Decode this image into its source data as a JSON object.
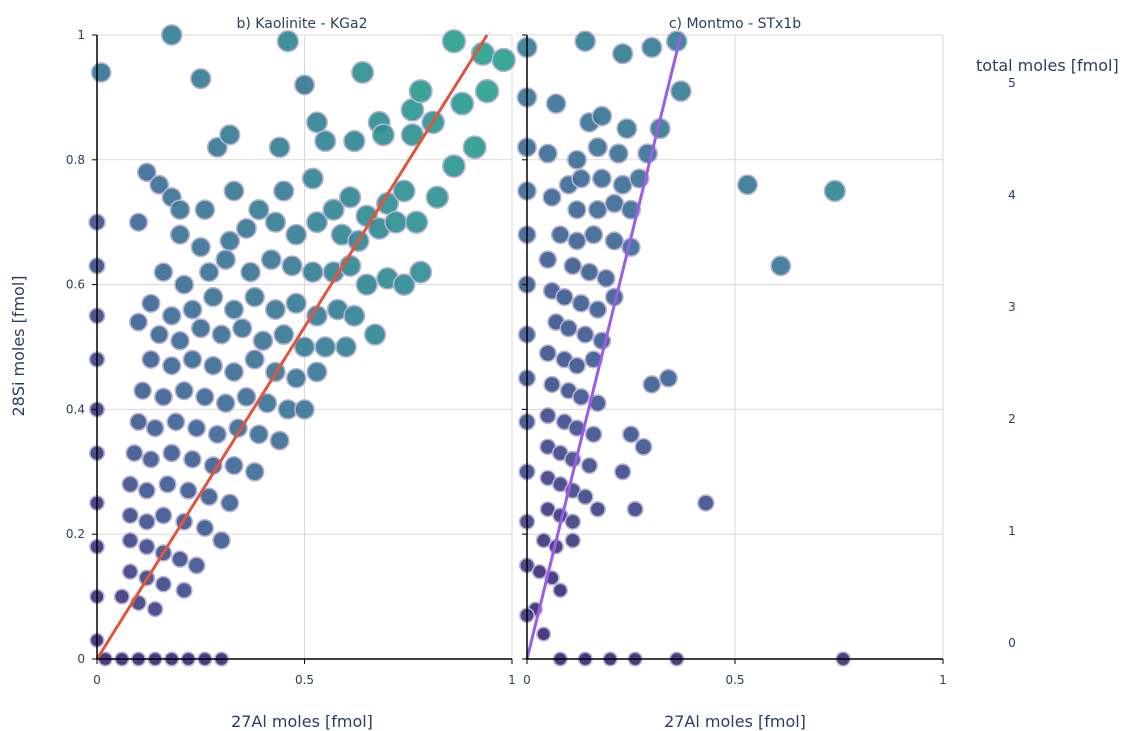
{
  "colors": {
    "grid": "#d9d9d9",
    "axis": "#000000",
    "marker_outline": "#b8b2d6",
    "kaolinite_fit": "#e1553f",
    "montmo_fit": "#9b5ce8",
    "colorscale": [
      "#3b1f6b",
      "#404a8a",
      "#3e6a95",
      "#338394",
      "#2a9f8e"
    ]
  },
  "chart_data": [
    {
      "type": "scatter",
      "title": "b) Kaolinite - KGa2",
      "xlabel": "27Al moles [fmol]",
      "ylabel": "28Si moles [fmol]",
      "xlim": [
        0,
        1
      ],
      "ylim": [
        0,
        1
      ],
      "xticks": [
        "0",
        "0.5",
        "1"
      ],
      "yticks": [
        "0",
        "0.2",
        "0.4",
        "0.6",
        "0.8",
        "1"
      ],
      "grid": true,
      "fit_line": {
        "x": [
          0,
          0.94
        ],
        "y": [
          0,
          1
        ]
      },
      "points": [
        [
          0.01,
          0.94,
          4.3
        ],
        [
          0.18,
          1.0,
          4.6
        ],
        [
          0.25,
          0.93,
          4.5
        ],
        [
          0.46,
          0.99,
          4.8
        ],
        [
          0.5,
          0.92,
          4.4
        ],
        [
          0.64,
          0.94,
          5
        ],
        [
          0.86,
          0.99,
          5.4
        ],
        [
          0.93,
          0.97,
          5.4
        ],
        [
          0.98,
          0.96,
          5.4
        ],
        [
          0.94,
          0.91,
          5.4
        ],
        [
          0.78,
          0.91,
          5.3
        ],
        [
          0.88,
          0.89,
          5.3
        ],
        [
          0.76,
          0.88,
          5.2
        ],
        [
          0.68,
          0.86,
          5
        ],
        [
          0.53,
          0.86,
          4.7
        ],
        [
          0.32,
          0.84,
          4.5
        ],
        [
          0.29,
          0.82,
          4.4
        ],
        [
          0.44,
          0.82,
          4.6
        ],
        [
          0.55,
          0.83,
          4.7
        ],
        [
          0.62,
          0.83,
          4.8
        ],
        [
          0.69,
          0.84,
          5
        ],
        [
          0.76,
          0.84,
          5.1
        ],
        [
          0.81,
          0.86,
          5.2
        ],
        [
          0.91,
          0.82,
          5.3
        ],
        [
          0.12,
          0.78,
          4
        ],
        [
          0.15,
          0.76,
          4.1
        ],
        [
          0.18,
          0.74,
          4.2
        ],
        [
          0.2,
          0.72,
          4.3
        ],
        [
          0.26,
          0.72,
          4.3
        ],
        [
          0.33,
          0.75,
          4.4
        ],
        [
          0.39,
          0.72,
          4.5
        ],
        [
          0.45,
          0.75,
          4.5
        ],
        [
          0.52,
          0.77,
          4.7
        ],
        [
          0.57,
          0.72,
          4.8
        ],
        [
          0.61,
          0.74,
          4.8
        ],
        [
          0.65,
          0.71,
          4.9
        ],
        [
          0.7,
          0.73,
          5
        ],
        [
          0.74,
          0.75,
          5
        ],
        [
          0.77,
          0.7,
          5.1
        ],
        [
          0.82,
          0.74,
          5.1
        ],
        [
          0.86,
          0.79,
          5.2
        ],
        [
          0.1,
          0.7,
          3.9
        ],
        [
          0.2,
          0.68,
          4.2
        ],
        [
          0.25,
          0.66,
          4.2
        ],
        [
          0.32,
          0.67,
          4.3
        ],
        [
          0.36,
          0.69,
          4.4
        ],
        [
          0.43,
          0.7,
          4.5
        ],
        [
          0.48,
          0.68,
          4.6
        ],
        [
          0.53,
          0.7,
          4.7
        ],
        [
          0.59,
          0.68,
          4.8
        ],
        [
          0.63,
          0.67,
          4.8
        ],
        [
          0.68,
          0.69,
          4.9
        ],
        [
          0.72,
          0.7,
          5
        ],
        [
          0.78,
          0.62,
          5
        ],
        [
          0.16,
          0.62,
          4
        ],
        [
          0.21,
          0.6,
          4.1
        ],
        [
          0.27,
          0.62,
          4.2
        ],
        [
          0.31,
          0.64,
          4.3
        ],
        [
          0.37,
          0.62,
          4.3
        ],
        [
          0.42,
          0.64,
          4.4
        ],
        [
          0.47,
          0.63,
          4.5
        ],
        [
          0.52,
          0.62,
          4.6
        ],
        [
          0.57,
          0.62,
          4.7
        ],
        [
          0.61,
          0.63,
          4.8
        ],
        [
          0.65,
          0.6,
          4.8
        ],
        [
          0.7,
          0.61,
          4.9
        ],
        [
          0.74,
          0.6,
          4.9
        ],
        [
          0.13,
          0.57,
          3.9
        ],
        [
          0.18,
          0.55,
          4
        ],
        [
          0.23,
          0.56,
          4.1
        ],
        [
          0.28,
          0.58,
          4.2
        ],
        [
          0.33,
          0.56,
          4.2
        ],
        [
          0.38,
          0.58,
          4.3
        ],
        [
          0.43,
          0.56,
          4.4
        ],
        [
          0.48,
          0.57,
          4.5
        ],
        [
          0.53,
          0.55,
          4.6
        ],
        [
          0.58,
          0.56,
          4.6
        ],
        [
          0.62,
          0.55,
          4.7
        ],
        [
          0.67,
          0.52,
          4.8
        ],
        [
          0.1,
          0.54,
          3.8
        ],
        [
          0.15,
          0.52,
          3.9
        ],
        [
          0.2,
          0.51,
          4
        ],
        [
          0.25,
          0.53,
          4.1
        ],
        [
          0.3,
          0.52,
          4.1
        ],
        [
          0.35,
          0.53,
          4.2
        ],
        [
          0.4,
          0.51,
          4.3
        ],
        [
          0.45,
          0.52,
          4.4
        ],
        [
          0.5,
          0.5,
          4.5
        ],
        [
          0.55,
          0.5,
          4.6
        ],
        [
          0.6,
          0.5,
          4.6
        ],
        [
          0.13,
          0.48,
          3.8
        ],
        [
          0.18,
          0.47,
          3.9
        ],
        [
          0.23,
          0.48,
          4
        ],
        [
          0.28,
          0.47,
          4
        ],
        [
          0.33,
          0.46,
          4.1
        ],
        [
          0.38,
          0.48,
          4.2
        ],
        [
          0.43,
          0.46,
          4.3
        ],
        [
          0.48,
          0.45,
          4.3
        ],
        [
          0.53,
          0.46,
          4.4
        ],
        [
          0.11,
          0.43,
          3.7
        ],
        [
          0.16,
          0.42,
          3.8
        ],
        [
          0.21,
          0.43,
          3.9
        ],
        [
          0.26,
          0.42,
          3.9
        ],
        [
          0.31,
          0.41,
          4
        ],
        [
          0.36,
          0.42,
          4.1
        ],
        [
          0.41,
          0.41,
          4.2
        ],
        [
          0.46,
          0.4,
          4.3
        ],
        [
          0.5,
          0.4,
          4.3
        ],
        [
          0.1,
          0.38,
          3.6
        ],
        [
          0.14,
          0.37,
          3.7
        ],
        [
          0.19,
          0.38,
          3.8
        ],
        [
          0.24,
          0.37,
          3.8
        ],
        [
          0.29,
          0.36,
          3.9
        ],
        [
          0.34,
          0.37,
          4
        ],
        [
          0.39,
          0.36,
          4.1
        ],
        [
          0.44,
          0.35,
          4.1
        ],
        [
          0.09,
          0.33,
          3.5
        ],
        [
          0.13,
          0.32,
          3.6
        ],
        [
          0.18,
          0.33,
          3.7
        ],
        [
          0.23,
          0.32,
          3.7
        ],
        [
          0.28,
          0.31,
          3.8
        ],
        [
          0.33,
          0.31,
          3.9
        ],
        [
          0.38,
          0.3,
          4
        ],
        [
          0.08,
          0.28,
          3.4
        ],
        [
          0.12,
          0.27,
          3.5
        ],
        [
          0.17,
          0.28,
          3.6
        ],
        [
          0.22,
          0.27,
          3.6
        ],
        [
          0.27,
          0.26,
          3.7
        ],
        [
          0.32,
          0.25,
          3.8
        ],
        [
          0.08,
          0.23,
          3.3
        ],
        [
          0.12,
          0.22,
          3.4
        ],
        [
          0.16,
          0.23,
          3.5
        ],
        [
          0.21,
          0.22,
          3.5
        ],
        [
          0.26,
          0.21,
          3.6
        ],
        [
          0.3,
          0.19,
          3.7
        ],
        [
          0.08,
          0.19,
          3.2
        ],
        [
          0.12,
          0.18,
          3.3
        ],
        [
          0.16,
          0.17,
          3.4
        ],
        [
          0.2,
          0.16,
          3.4
        ],
        [
          0.24,
          0.15,
          3.5
        ],
        [
          0.08,
          0.14,
          3.1
        ],
        [
          0.12,
          0.13,
          3.2
        ],
        [
          0.16,
          0.12,
          3.2
        ],
        [
          0.21,
          0.11,
          3.3
        ],
        [
          0.06,
          0.1,
          3
        ],
        [
          0.1,
          0.09,
          3.1
        ],
        [
          0.14,
          0.08,
          3.1
        ],
        [
          0.0,
          0.7,
          3.4
        ],
        [
          0.0,
          0.63,
          3.3
        ],
        [
          0.0,
          0.55,
          3.2
        ],
        [
          0.0,
          0.48,
          3.1
        ],
        [
          0.0,
          0.4,
          3
        ],
        [
          0.0,
          0.33,
          3
        ],
        [
          0.0,
          0.25,
          2.9
        ],
        [
          0.0,
          0.18,
          2.9
        ],
        [
          0.0,
          0.1,
          2.8
        ],
        [
          0.0,
          0.03,
          2.7
        ],
        [
          0.02,
          0.0,
          2.7
        ],
        [
          0.06,
          0.0,
          2.7
        ],
        [
          0.1,
          0.0,
          2.7
        ],
        [
          0.14,
          0.0,
          2.7
        ],
        [
          0.18,
          0.0,
          2.7
        ],
        [
          0.22,
          0.0,
          2.7
        ],
        [
          0.26,
          0.0,
          2.7
        ],
        [
          0.3,
          0.0,
          2.7
        ]
      ]
    },
    {
      "type": "scatter",
      "title": "c) Montmo - STx1b",
      "xlabel": "27Al moles [fmol]",
      "xlim": [
        0,
        1
      ],
      "ylim": [
        0,
        1
      ],
      "xticks": [
        "0",
        "0.5",
        "1"
      ],
      "grid": true,
      "fit_line": {
        "x": [
          0,
          0.37
        ],
        "y": [
          0,
          1
        ]
      },
      "points": [
        [
          0.0,
          0.98,
          4.5
        ],
        [
          0.0,
          0.9,
          4.3
        ],
        [
          0.0,
          0.82,
          4.1
        ],
        [
          0.0,
          0.75,
          4
        ],
        [
          0.0,
          0.68,
          3.8
        ],
        [
          0.0,
          0.6,
          3.7
        ],
        [
          0.0,
          0.52,
          3.6
        ],
        [
          0.0,
          0.45,
          3.5
        ],
        [
          0.0,
          0.38,
          3.4
        ],
        [
          0.0,
          0.3,
          3.3
        ],
        [
          0.0,
          0.22,
          3.1
        ],
        [
          0.0,
          0.15,
          3
        ],
        [
          0.0,
          0.07,
          2.9
        ],
        [
          0.14,
          0.99,
          4.6
        ],
        [
          0.23,
          0.97,
          4.5
        ],
        [
          0.3,
          0.98,
          4.5
        ],
        [
          0.36,
          0.99,
          4.6
        ],
        [
          0.07,
          0.89,
          4.3
        ],
        [
          0.15,
          0.86,
          4.3
        ],
        [
          0.18,
          0.87,
          4.3
        ],
        [
          0.24,
          0.85,
          4.4
        ],
        [
          0.32,
          0.85,
          4.5
        ],
        [
          0.37,
          0.91,
          4.6
        ],
        [
          0.05,
          0.81,
          4.1
        ],
        [
          0.12,
          0.8,
          4.1
        ],
        [
          0.17,
          0.82,
          4.2
        ],
        [
          0.22,
          0.81,
          4.2
        ],
        [
          0.29,
          0.81,
          4.3
        ],
        [
          0.1,
          0.76,
          4
        ],
        [
          0.13,
          0.77,
          4
        ],
        [
          0.18,
          0.77,
          4.1
        ],
        [
          0.23,
          0.76,
          4.1
        ],
        [
          0.27,
          0.77,
          4.2
        ],
        [
          0.53,
          0.76,
          4.4
        ],
        [
          0.74,
          0.75,
          4.8
        ],
        [
          0.06,
          0.74,
          3.9
        ],
        [
          0.12,
          0.72,
          3.9
        ],
        [
          0.17,
          0.72,
          4
        ],
        [
          0.21,
          0.73,
          4
        ],
        [
          0.25,
          0.72,
          4.1
        ],
        [
          0.08,
          0.68,
          3.8
        ],
        [
          0.12,
          0.67,
          3.8
        ],
        [
          0.16,
          0.68,
          3.9
        ],
        [
          0.21,
          0.67,
          3.9
        ],
        [
          0.25,
          0.66,
          4
        ],
        [
          0.05,
          0.64,
          3.7
        ],
        [
          0.11,
          0.63,
          3.7
        ],
        [
          0.15,
          0.62,
          3.8
        ],
        [
          0.19,
          0.61,
          3.8
        ],
        [
          0.61,
          0.63,
          4.4
        ],
        [
          0.06,
          0.59,
          3.6
        ],
        [
          0.09,
          0.58,
          3.6
        ],
        [
          0.13,
          0.57,
          3.7
        ],
        [
          0.17,
          0.56,
          3.7
        ],
        [
          0.21,
          0.58,
          3.8
        ],
        [
          0.07,
          0.54,
          3.5
        ],
        [
          0.1,
          0.53,
          3.6
        ],
        [
          0.14,
          0.52,
          3.6
        ],
        [
          0.18,
          0.51,
          3.7
        ],
        [
          0.05,
          0.49,
          3.5
        ],
        [
          0.09,
          0.48,
          3.5
        ],
        [
          0.12,
          0.47,
          3.5
        ],
        [
          0.16,
          0.48,
          3.6
        ],
        [
          0.3,
          0.44,
          3.7
        ],
        [
          0.34,
          0.45,
          3.8
        ],
        [
          0.06,
          0.44,
          3.4
        ],
        [
          0.1,
          0.43,
          3.4
        ],
        [
          0.13,
          0.42,
          3.5
        ],
        [
          0.17,
          0.41,
          3.5
        ],
        [
          0.05,
          0.39,
          3.3
        ],
        [
          0.09,
          0.38,
          3.3
        ],
        [
          0.12,
          0.37,
          3.4
        ],
        [
          0.16,
          0.36,
          3.4
        ],
        [
          0.25,
          0.36,
          3.5
        ],
        [
          0.28,
          0.34,
          3.5
        ],
        [
          0.05,
          0.34,
          3.2
        ],
        [
          0.08,
          0.33,
          3.2
        ],
        [
          0.11,
          0.32,
          3.3
        ],
        [
          0.15,
          0.31,
          3.3
        ],
        [
          0.05,
          0.29,
          3.1
        ],
        [
          0.08,
          0.28,
          3.1
        ],
        [
          0.11,
          0.27,
          3.2
        ],
        [
          0.14,
          0.26,
          3.2
        ],
        [
          0.23,
          0.3,
          3.3
        ],
        [
          0.43,
          0.25,
          3.4
        ],
        [
          0.05,
          0.24,
          3
        ],
        [
          0.08,
          0.23,
          3
        ],
        [
          0.11,
          0.22,
          3.1
        ],
        [
          0.17,
          0.24,
          3.1
        ],
        [
          0.26,
          0.24,
          3.2
        ],
        [
          0.04,
          0.19,
          2.9
        ],
        [
          0.07,
          0.18,
          2.9
        ],
        [
          0.11,
          0.19,
          3
        ],
        [
          0.03,
          0.14,
          2.8
        ],
        [
          0.06,
          0.13,
          2.8
        ],
        [
          0.08,
          0.11,
          2.8
        ],
        [
          0.02,
          0.08,
          2.7
        ],
        [
          0.04,
          0.04,
          2.7
        ],
        [
          0.08,
          0.0,
          2.7
        ],
        [
          0.14,
          0.0,
          2.7
        ],
        [
          0.2,
          0.0,
          2.7
        ],
        [
          0.26,
          0.0,
          2.7
        ],
        [
          0.36,
          0.0,
          2.7
        ],
        [
          0.76,
          0.0,
          2.8
        ]
      ]
    }
  ],
  "colorbar": {
    "title": "total moles [fmol]",
    "ticks": [
      "0",
      "1",
      "2",
      "3",
      "4",
      "5"
    ],
    "range": [
      0,
      5
    ]
  }
}
